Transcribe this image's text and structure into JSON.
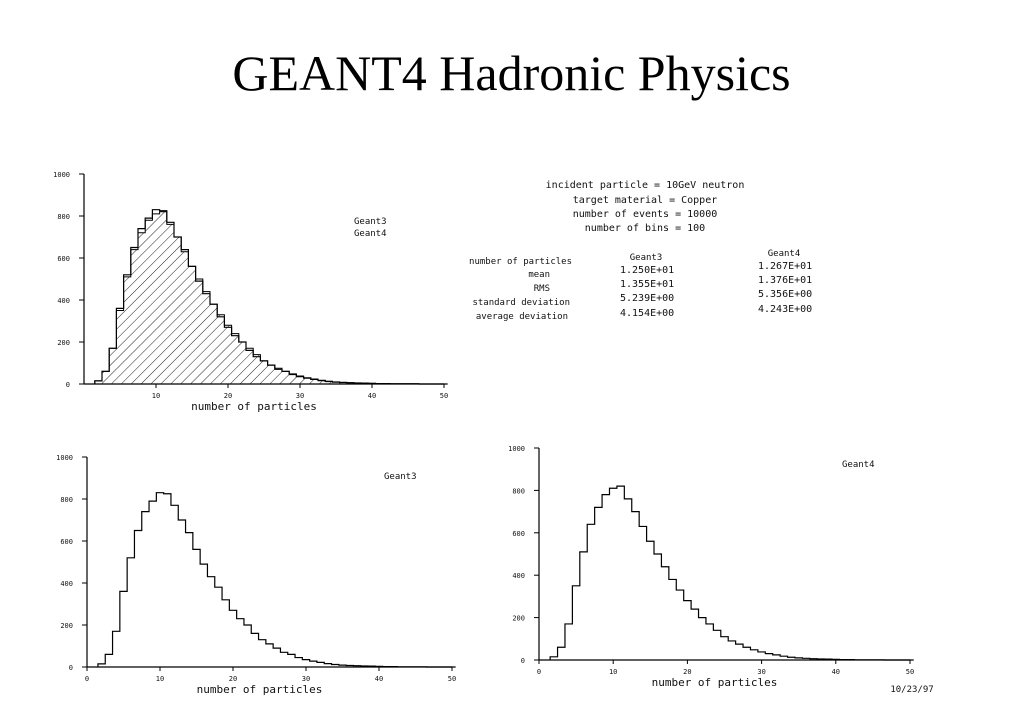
{
  "slide": {
    "title": "GEANT4 Hadronic Physics",
    "date": "10/23/97"
  },
  "info": {
    "lines": [
      "incident particle = 10GeV neutron",
      "target material = Copper",
      "number of events = 10000",
      "number of bins = 100"
    ],
    "stats_header": [
      "number of particles",
      "Geant3",
      "Geant4"
    ],
    "stats_rows": [
      {
        "label": "mean",
        "g3": "1.250E+01",
        "g4": "1.267E+01"
      },
      {
        "label": "RMS",
        "g3": "1.355E+01",
        "g4": "1.376E+01"
      },
      {
        "label": "standard deviation",
        "g3": "5.239E+00",
        "g4": "5.356E+00"
      },
      {
        "label": "average deviation",
        "g3": "4.154E+00",
        "g4": "4.243E+00"
      }
    ]
  },
  "chart_data": [
    {
      "type": "line",
      "id": "combined",
      "xlabel": "number of particles",
      "ylabel": "",
      "xlim": [
        0,
        50
      ],
      "ylim": [
        0,
        1000
      ],
      "xticks": [
        "10",
        "20",
        "30",
        "40",
        "50"
      ],
      "yticks": [
        "1000",
        "800",
        "600",
        "400",
        "200",
        "0"
      ],
      "legend": [
        "Geant3",
        "Geant4"
      ],
      "x": [
        2,
        3,
        4,
        5,
        6,
        7,
        8,
        9,
        10,
        11,
        12,
        13,
        14,
        15,
        16,
        17,
        18,
        19,
        20,
        21,
        22,
        23,
        24,
        25,
        26,
        27,
        28,
        29,
        30,
        31,
        32,
        33,
        34,
        35,
        36,
        37,
        38,
        39,
        40,
        41,
        42,
        43,
        44,
        45,
        46,
        47,
        48,
        49,
        50
      ],
      "series": [
        {
          "name": "Geant3",
          "values": [
            15,
            60,
            170,
            360,
            520,
            650,
            740,
            790,
            830,
            825,
            770,
            700,
            640,
            560,
            490,
            430,
            380,
            320,
            270,
            230,
            200,
            160,
            130,
            110,
            90,
            70,
            60,
            45,
            35,
            28,
            22,
            16,
            12,
            9,
            7,
            6,
            5,
            4,
            3,
            2,
            2,
            1,
            1,
            1,
            1,
            0,
            0,
            0,
            0
          ]
        },
        {
          "name": "Geant4",
          "values": [
            15,
            60,
            170,
            350,
            510,
            640,
            720,
            780,
            810,
            820,
            760,
            700,
            630,
            560,
            500,
            440,
            380,
            330,
            280,
            240,
            200,
            170,
            140,
            110,
            90,
            75,
            60,
            48,
            38,
            30,
            24,
            18,
            13,
            10,
            8,
            6,
            5,
            4,
            3,
            2,
            2,
            1,
            1,
            1,
            1,
            0,
            0,
            0,
            0
          ]
        }
      ]
    },
    {
      "type": "line",
      "id": "geant3",
      "xlabel": "number of particles",
      "xlim": [
        0,
        50
      ],
      "ylim": [
        0,
        1000
      ],
      "xticks": [
        "0",
        "10",
        "20",
        "30",
        "40",
        "50"
      ],
      "yticks": [
        "1000",
        "800",
        "600",
        "400",
        "200",
        "0"
      ],
      "legend": [
        "Geant3"
      ],
      "x": [
        2,
        3,
        4,
        5,
        6,
        7,
        8,
        9,
        10,
        11,
        12,
        13,
        14,
        15,
        16,
        17,
        18,
        19,
        20,
        21,
        22,
        23,
        24,
        25,
        26,
        27,
        28,
        29,
        30,
        31,
        32,
        33,
        34,
        35,
        36,
        37,
        38,
        39,
        40,
        41,
        42,
        43,
        44,
        45,
        46,
        47,
        48,
        49,
        50
      ],
      "series": [
        {
          "name": "Geant3",
          "values": [
            15,
            60,
            170,
            360,
            520,
            650,
            740,
            790,
            830,
            825,
            770,
            700,
            640,
            560,
            490,
            430,
            380,
            320,
            270,
            230,
            200,
            160,
            130,
            110,
            90,
            70,
            60,
            45,
            35,
            28,
            22,
            16,
            12,
            9,
            7,
            6,
            5,
            4,
            3,
            2,
            2,
            1,
            1,
            1,
            1,
            0,
            0,
            0,
            0
          ]
        }
      ]
    },
    {
      "type": "line",
      "id": "geant4",
      "xlabel": "number of particles",
      "xlim": [
        0,
        50
      ],
      "ylim": [
        0,
        1000
      ],
      "xticks": [
        "0",
        "10",
        "20",
        "30",
        "40",
        "50"
      ],
      "yticks": [
        "1000",
        "800",
        "600",
        "400",
        "200",
        "0"
      ],
      "legend": [
        "Geant4"
      ],
      "x": [
        2,
        3,
        4,
        5,
        6,
        7,
        8,
        9,
        10,
        11,
        12,
        13,
        14,
        15,
        16,
        17,
        18,
        19,
        20,
        21,
        22,
        23,
        24,
        25,
        26,
        27,
        28,
        29,
        30,
        31,
        32,
        33,
        34,
        35,
        36,
        37,
        38,
        39,
        40,
        41,
        42,
        43,
        44,
        45,
        46,
        47,
        48,
        49,
        50
      ],
      "series": [
        {
          "name": "Geant4",
          "values": [
            15,
            60,
            170,
            350,
            510,
            640,
            720,
            780,
            810,
            820,
            760,
            700,
            630,
            560,
            500,
            440,
            380,
            330,
            280,
            240,
            200,
            170,
            140,
            110,
            90,
            75,
            60,
            48,
            38,
            30,
            24,
            18,
            13,
            10,
            8,
            6,
            5,
            4,
            3,
            2,
            2,
            1,
            1,
            1,
            1,
            0,
            0,
            0,
            0
          ]
        }
      ]
    }
  ]
}
